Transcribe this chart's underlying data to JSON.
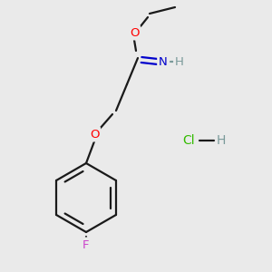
{
  "background_color": "#eaeaea",
  "bond_color": "#1a1a1a",
  "atom_colors": {
    "O": "#ff0000",
    "N": "#0000cc",
    "F": "#cc44cc",
    "Cl": "#33bb00",
    "H_dark": "#7a9a9a",
    "C": "#1a1a1a"
  },
  "figsize": [
    3.0,
    3.0
  ],
  "dpi": 100,
  "lw": 1.6,
  "fontsize": 9.5
}
